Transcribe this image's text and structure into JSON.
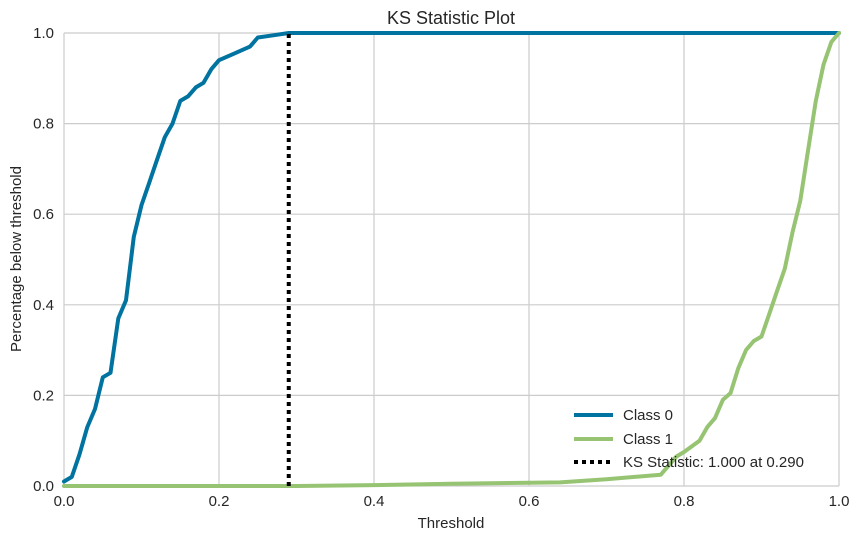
{
  "chart_data": {
    "type": "line",
    "title": "KS Statistic Plot",
    "xlabel": "Threshold",
    "ylabel": "Percentage below threshold",
    "xlim": [
      0,
      1
    ],
    "ylim": [
      0,
      1
    ],
    "grid": true,
    "legend_placement": "lower-right",
    "x_ticks": [
      "0.0",
      "0.2",
      "0.4",
      "0.6",
      "0.8",
      "1.0"
    ],
    "y_ticks": [
      "0.0",
      "0.2",
      "0.4",
      "0.6",
      "0.8",
      "1.0"
    ],
    "series": [
      {
        "name": "Class 0",
        "color": "#0173a0",
        "style": "solid",
        "x": [
          0,
          0.01,
          0.02,
          0.03,
          0.04,
          0.05,
          0.06,
          0.07,
          0.08,
          0.09,
          0.1,
          0.11,
          0.12,
          0.13,
          0.14,
          0.15,
          0.16,
          0.17,
          0.18,
          0.19,
          0.2,
          0.22,
          0.24,
          0.25,
          0.27,
          0.29,
          0.35,
          0.5,
          0.7,
          1.0
        ],
        "y": [
          0.01,
          0.02,
          0.07,
          0.13,
          0.17,
          0.24,
          0.25,
          0.37,
          0.41,
          0.55,
          0.62,
          0.67,
          0.72,
          0.77,
          0.8,
          0.85,
          0.86,
          0.88,
          0.89,
          0.92,
          0.94,
          0.955,
          0.97,
          0.99,
          0.995,
          1.0,
          1.0,
          1.0,
          1.0,
          1.0
        ]
      },
      {
        "name": "Class 1",
        "color": "#96c472",
        "style": "solid",
        "x": [
          0,
          0.2,
          0.3,
          0.4,
          0.5,
          0.6,
          0.64,
          0.7,
          0.77,
          0.79,
          0.8,
          0.82,
          0.83,
          0.84,
          0.85,
          0.86,
          0.87,
          0.88,
          0.89,
          0.9,
          0.91,
          0.92,
          0.93,
          0.94,
          0.95,
          0.96,
          0.97,
          0.98,
          0.99,
          1.0
        ],
        "y": [
          0,
          0,
          0,
          0.002,
          0.005,
          0.007,
          0.008,
          0.015,
          0.025,
          0.065,
          0.075,
          0.1,
          0.13,
          0.15,
          0.19,
          0.205,
          0.26,
          0.3,
          0.32,
          0.33,
          0.38,
          0.43,
          0.48,
          0.56,
          0.63,
          0.74,
          0.85,
          0.93,
          0.98,
          1.0
        ]
      }
    ],
    "ks_statistic": {
      "label": "KS Statistic: 1.000 at 0.290",
      "x": 0.29,
      "y_from": 0,
      "y_to": 1,
      "color": "#000000",
      "style": "dotted"
    }
  }
}
